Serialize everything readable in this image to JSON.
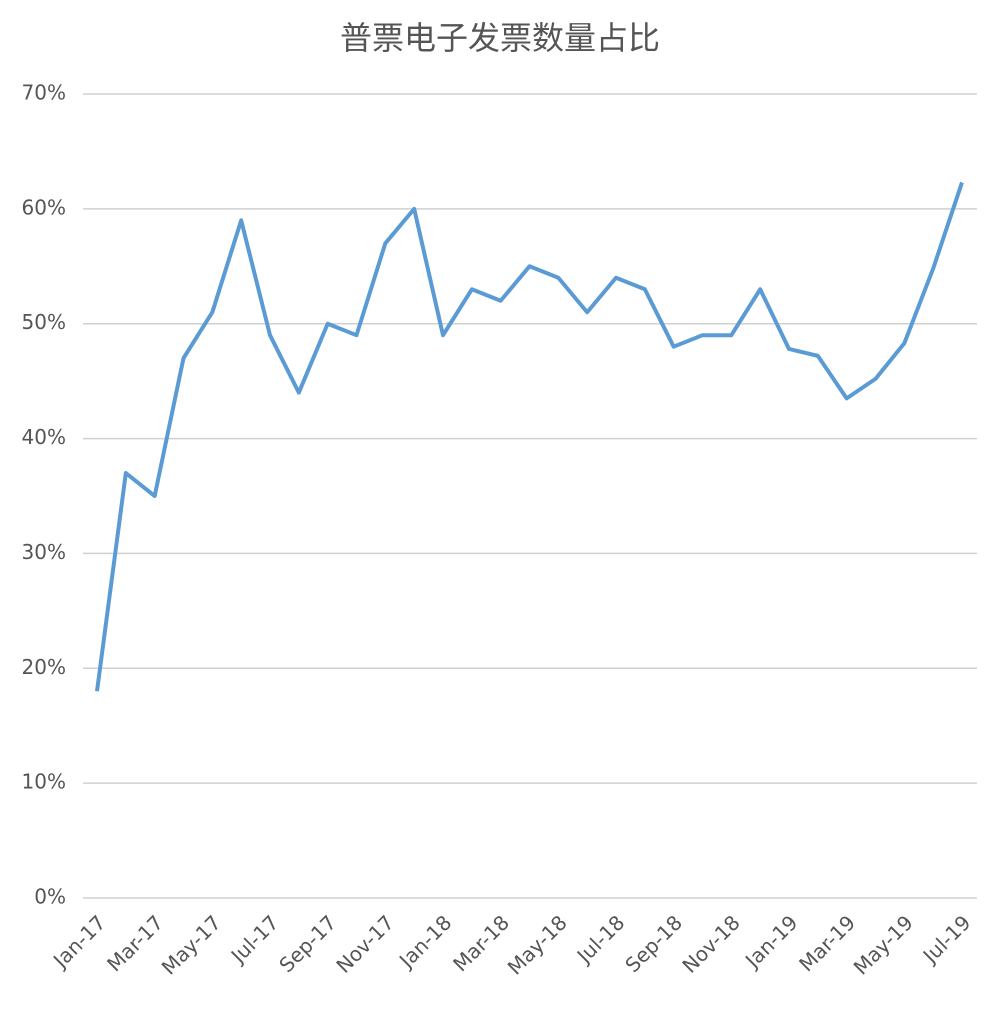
{
  "chart_data": {
    "type": "line",
    "title": "普票电子发票数量占比",
    "categories": [
      "Jan-17",
      null,
      "Mar-17",
      null,
      "May-17",
      null,
      "Jul-17",
      null,
      "Sep-17",
      null,
      "Nov-17",
      null,
      "Jan-18",
      null,
      "Mar-18",
      null,
      "May-18",
      null,
      "Jul-18",
      null,
      "Sep-18",
      null,
      "Nov-18",
      null,
      "Jan-19",
      null,
      "Mar-19",
      null,
      "May-19",
      null,
      "Jul-19"
    ],
    "series": [
      {
        "name": "普票电子发票数量占比",
        "color": "#5b9bd5",
        "values": [
          18,
          37,
          35,
          47,
          51,
          59,
          49,
          44,
          50,
          49,
          57,
          60,
          49,
          53,
          52,
          55,
          54,
          51,
          54,
          53,
          48,
          49,
          49,
          53,
          47.8,
          47.2,
          43.5,
          45.2,
          48.3,
          54.8,
          62.3
        ]
      }
    ],
    "ylim": [
      0,
      70
    ],
    "yticks": [
      {
        "value": 0,
        "label": "0%"
      },
      {
        "value": 10,
        "label": "10%"
      },
      {
        "value": 20,
        "label": "20%"
      },
      {
        "value": 30,
        "label": "30%"
      },
      {
        "value": 40,
        "label": "40%"
      },
      {
        "value": 50,
        "label": "50%"
      },
      {
        "value": 60,
        "label": "60%"
      },
      {
        "value": 70,
        "label": "70%"
      }
    ],
    "grid": true
  }
}
